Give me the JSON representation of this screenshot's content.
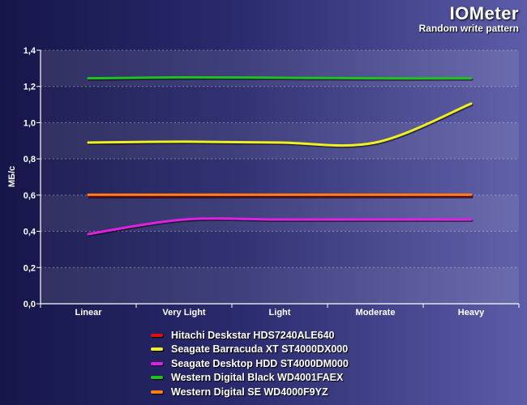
{
  "header": {
    "title": "IOMeter",
    "subtitle": "Random write pattern"
  },
  "chart_data": {
    "type": "line",
    "title": "IOMeter",
    "subtitle": "Random write pattern",
    "xlabel": "",
    "ylabel": "МБ/с",
    "categories": [
      "Linear",
      "Very Light",
      "Light",
      "Moderate",
      "Heavy"
    ],
    "ylim": [
      0,
      1.4
    ],
    "yticks": [
      "0,0",
      "0,2",
      "0,4",
      "0,6",
      "0,8",
      "1,0",
      "1,2",
      "1,4"
    ],
    "grid": true,
    "legend_position": "bottom",
    "series": [
      {
        "name": "Hitachi Deskstar HDS7240ALE640",
        "color": "#e01010",
        "values": [
          0.595,
          0.595,
          0.595,
          0.595,
          0.595
        ]
      },
      {
        "name": "Seagate Barracuda XT ST4000DX000",
        "color": "#f0f020",
        "values": [
          0.89,
          0.895,
          0.89,
          0.89,
          1.105
        ]
      },
      {
        "name": "Seagate Desktop HDD ST4000DM000",
        "color": "#e020e0",
        "values": [
          0.385,
          0.465,
          0.465,
          0.465,
          0.465
        ]
      },
      {
        "name": "Western Digital Black WD4001FAEX",
        "color": "#20c020",
        "values": [
          1.245,
          1.25,
          1.248,
          1.245,
          1.245
        ]
      },
      {
        "name": "Western Digital SE WD4000F9YZ",
        "color": "#ff7f1a",
        "values": [
          0.602,
          0.602,
          0.602,
          0.602,
          0.602
        ]
      }
    ]
  }
}
